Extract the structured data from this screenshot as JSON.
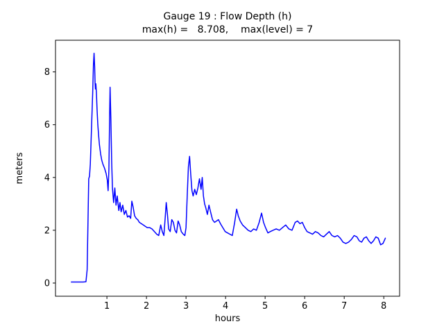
{
  "chart_data": {
    "type": "line",
    "title": "Gauge 19 : Flow Depth (h)",
    "subtitle": "max(h) =   8.708,    max(level) = 7",
    "xlabel": "hours",
    "ylabel": "meters",
    "xlim": [
      -0.3,
      8.4
    ],
    "ylim": [
      -0.5,
      9.2
    ],
    "xticks": [
      1,
      2,
      3,
      4,
      5,
      6,
      7,
      8
    ],
    "yticks": [
      0,
      2,
      4,
      6,
      8
    ],
    "grid": false,
    "legend": "none",
    "line_color": "#0000ff",
    "axis_color": "#000000",
    "background_color": "#ffffff",
    "max_h": 8.708,
    "max_level": 7,
    "series": [
      {
        "name": "flow-depth-h",
        "x": [
          0.1,
          0.25,
          0.4,
          0.47,
          0.5,
          0.52,
          0.54,
          0.56,
          0.58,
          0.6,
          0.62,
          0.64,
          0.66,
          0.675,
          0.69,
          0.7,
          0.71,
          0.72,
          0.735,
          0.75,
          0.77,
          0.79,
          0.81,
          0.84,
          0.87,
          0.9,
          0.94,
          0.98,
          1.01,
          1.03,
          1.05,
          1.07,
          1.08,
          1.1,
          1.12,
          1.14,
          1.17,
          1.2,
          1.23,
          1.26,
          1.3,
          1.33,
          1.36,
          1.4,
          1.44,
          1.48,
          1.52,
          1.56,
          1.6,
          1.63,
          1.66,
          1.7,
          1.74,
          1.78,
          1.82,
          1.87,
          1.92,
          1.97,
          2.02,
          2.08,
          2.14,
          2.2,
          2.26,
          2.31,
          2.36,
          2.4,
          2.44,
          2.47,
          2.5,
          2.53,
          2.56,
          2.6,
          2.64,
          2.68,
          2.72,
          2.76,
          2.8,
          2.84,
          2.88,
          2.93,
          2.97,
          3.0,
          3.03,
          3.06,
          3.09,
          3.12,
          3.15,
          3.18,
          3.22,
          3.26,
          3.3,
          3.34,
          3.38,
          3.41,
          3.44,
          3.47,
          3.5,
          3.54,
          3.58,
          3.62,
          3.67,
          3.72,
          3.77,
          3.82,
          3.87,
          3.93,
          3.99,
          4.05,
          4.11,
          4.17,
          4.23,
          4.28,
          4.32,
          4.37,
          4.43,
          4.5,
          4.57,
          4.64,
          4.71,
          4.78,
          4.85,
          4.91,
          4.96,
          5.01,
          5.07,
          5.13,
          5.2,
          5.28,
          5.36,
          5.44,
          5.52,
          5.6,
          5.68,
          5.76,
          5.82,
          5.88,
          5.94,
          6.0,
          6.06,
          6.13,
          6.2,
          6.27,
          6.34,
          6.41,
          6.48,
          6.55,
          6.62,
          6.69,
          6.76,
          6.83,
          6.9,
          6.97,
          7.04,
          7.11,
          7.18,
          7.25,
          7.32,
          7.38,
          7.44,
          7.5,
          7.56,
          7.62,
          7.68,
          7.74,
          7.8,
          7.86,
          7.92,
          7.98,
          8.04
        ],
        "y": [
          0.04,
          0.04,
          0.04,
          0.05,
          0.5,
          2.2,
          3.95,
          4.05,
          4.5,
          5.4,
          6.3,
          7.2,
          8.3,
          8.708,
          8.2,
          7.6,
          7.35,
          7.55,
          7.2,
          6.6,
          6.0,
          5.6,
          5.25,
          4.9,
          4.65,
          4.5,
          4.35,
          4.15,
          3.9,
          3.5,
          4.3,
          6.5,
          7.42,
          6.2,
          4.6,
          3.6,
          3.05,
          3.6,
          2.95,
          3.3,
          2.75,
          3.05,
          2.7,
          2.95,
          2.6,
          2.75,
          2.5,
          2.55,
          2.45,
          3.1,
          2.9,
          2.55,
          2.45,
          2.4,
          2.3,
          2.25,
          2.2,
          2.15,
          2.1,
          2.1,
          2.05,
          1.95,
          1.85,
          1.8,
          2.2,
          1.95,
          1.8,
          2.4,
          3.05,
          2.6,
          2.05,
          1.95,
          2.4,
          2.3,
          2.0,
          1.9,
          2.35,
          2.2,
          1.95,
          1.85,
          1.8,
          2.1,
          3.3,
          4.4,
          4.8,
          4.1,
          3.5,
          3.3,
          3.55,
          3.35,
          3.6,
          3.95,
          3.55,
          4.0,
          3.3,
          3.0,
          2.85,
          2.6,
          2.95,
          2.7,
          2.4,
          2.3,
          2.35,
          2.4,
          2.25,
          2.1,
          1.95,
          1.9,
          1.85,
          1.8,
          2.3,
          2.8,
          2.55,
          2.35,
          2.2,
          2.1,
          2.0,
          1.95,
          2.05,
          2.0,
          2.3,
          2.65,
          2.3,
          2.1,
          1.9,
          1.95,
          2.0,
          2.05,
          2.0,
          2.1,
          2.2,
          2.05,
          2.0,
          2.3,
          2.35,
          2.25,
          2.3,
          2.1,
          1.95,
          1.9,
          1.85,
          1.95,
          1.9,
          1.8,
          1.75,
          1.85,
          1.95,
          1.8,
          1.75,
          1.8,
          1.7,
          1.55,
          1.5,
          1.55,
          1.65,
          1.8,
          1.75,
          1.6,
          1.55,
          1.7,
          1.75,
          1.6,
          1.5,
          1.6,
          1.75,
          1.7,
          1.45,
          1.5,
          1.7
        ]
      }
    ]
  }
}
